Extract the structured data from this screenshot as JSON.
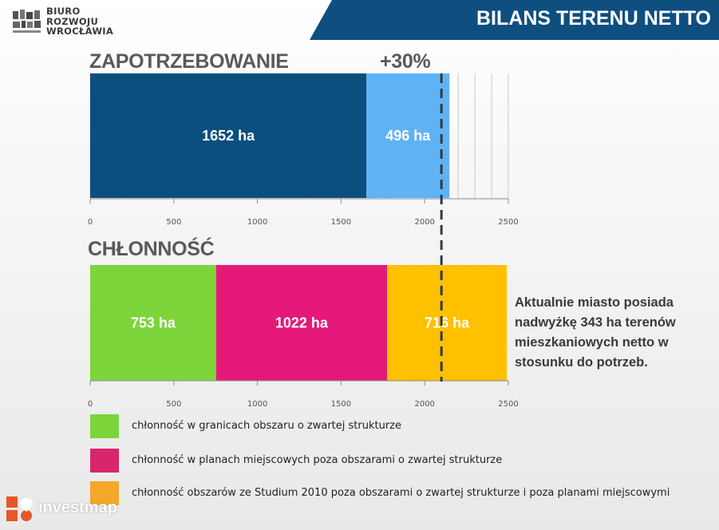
{
  "header": {
    "logo_lines": [
      "BIURO",
      "ROZWOJU",
      "WROCŁAWIA"
    ],
    "title": "BILANS TERENU NETTO"
  },
  "sections": {
    "demand_label": "ZAPOTRZEBOWANIE",
    "demand_extra_label": "+30%",
    "capacity_label": "CHŁONNOŚĆ"
  },
  "note": "Aktualnie miasto posiada nadwyżkę 343 ha terenów mieszkaniowych netto w stosunku do potrzeb.",
  "legend": [
    {
      "label": "chłonność w granicach obszaru o zwartej strukturze",
      "color": "#7ed43b"
    },
    {
      "label": "chłonność  w planach miejscowych poza obszarami o zwartej strukturze",
      "color": "#d8266d"
    },
    {
      "label": "chłonność obszarów ze Studium 2010 poza obszarami o zwartej strukturze i poza planami miejscowymi",
      "color": "#f5a72a"
    }
  ],
  "watermark": {
    "text": "investmap",
    "color": "#e8572a"
  },
  "chart_data": [
    {
      "type": "bar",
      "orientation": "horizontal-stacked",
      "title": "ZAPOTRZEBOWANIE",
      "annotation": "+30%",
      "series": [
        {
          "value": 1652,
          "label": "1652 ha",
          "color": "#0b4f7f"
        },
        {
          "value": 496,
          "label": "496 ha",
          "color": "#5fb3f4"
        }
      ],
      "xlim": [
        0,
        2500
      ],
      "ticks": [
        0,
        500,
        1000,
        1500,
        2000,
        2500
      ],
      "grid": true,
      "reference_line": 2100
    },
    {
      "type": "bar",
      "orientation": "horizontal-stacked",
      "title": "CHŁONNOŚĆ",
      "series": [
        {
          "value": 753,
          "label": "753 ha",
          "color": "#7ed43b"
        },
        {
          "value": 1022,
          "label": "1022 ha",
          "color": "#e5197a"
        },
        {
          "value": 716,
          "label": "716 ha",
          "color": "#ffc000"
        }
      ],
      "xlim": [
        0,
        2500
      ],
      "ticks": [
        0,
        500,
        1000,
        1500,
        2000,
        2500
      ],
      "grid": false,
      "reference_line": 2100
    }
  ]
}
